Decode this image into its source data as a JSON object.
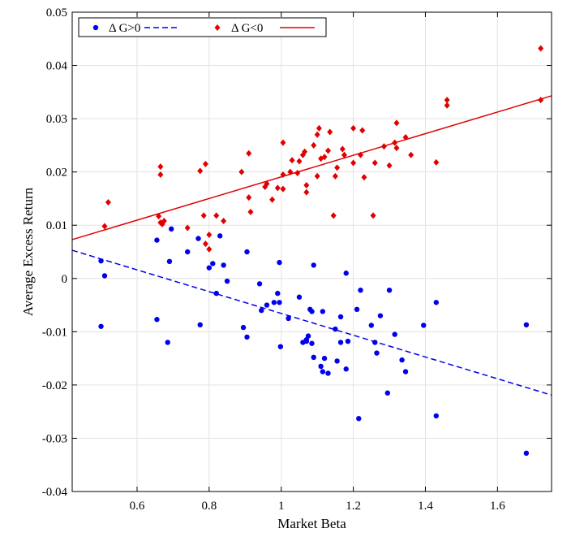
{
  "chart_data": {
    "type": "scatter",
    "title": "",
    "xlabel": "Market Beta",
    "ylabel": "Average Excess Return",
    "xlim": [
      0.42,
      1.75
    ],
    "ylim": [
      -0.04,
      0.05
    ],
    "xticks": [
      0.6,
      0.8,
      1,
      1.2,
      1.4,
      1.6
    ],
    "xtick_labels": [
      "0.6",
      "0.8",
      "1",
      "1.2",
      "1.4",
      "1.6"
    ],
    "yticks": [
      -0.04,
      -0.03,
      -0.02,
      -0.01,
      0,
      0.01,
      0.02,
      0.03,
      0.04,
      0.05
    ],
    "ytick_labels": [
      "-0.04",
      "-0.03",
      "-0.02",
      "-0.01",
      "0",
      "0.01",
      "0.02",
      "0.03",
      "0.04",
      "0.05"
    ],
    "grid": true,
    "legend_position": "top-left",
    "series": [
      {
        "name": "Δ G>0",
        "marker": "circle",
        "color": "#0000ee",
        "fit_line": {
          "style": "dashed",
          "x": [
            0.42,
            1.75
          ],
          "y": [
            0.0053,
            -0.0219
          ]
        },
        "points": [
          [
            0.5,
            0.0033
          ],
          [
            0.51,
            0.0005
          ],
          [
            0.5,
            -0.009
          ],
          [
            0.655,
            0.0072
          ],
          [
            0.655,
            -0.0077
          ],
          [
            0.685,
            -0.012
          ],
          [
            0.69,
            0.0032
          ],
          [
            0.695,
            0.0093
          ],
          [
            0.74,
            0.005
          ],
          [
            0.77,
            0.0075
          ],
          [
            0.775,
            -0.0087
          ],
          [
            0.8,
            0.002
          ],
          [
            0.81,
            0.0028
          ],
          [
            0.82,
            -0.0028
          ],
          [
            0.83,
            0.008
          ],
          [
            0.84,
            0.0025
          ],
          [
            0.85,
            -0.0005
          ],
          [
            0.895,
            -0.0092
          ],
          [
            0.905,
            0.005
          ],
          [
            0.905,
            -0.011
          ],
          [
            0.94,
            -0.001
          ],
          [
            0.945,
            -0.006
          ],
          [
            0.96,
            -0.005
          ],
          [
            0.98,
            -0.0045
          ],
          [
            0.99,
            -0.0028
          ],
          [
            0.995,
            0.003
          ],
          [
            0.995,
            -0.0045
          ],
          [
            0.998,
            -0.0128
          ],
          [
            1.02,
            -0.0075
          ],
          [
            1.05,
            -0.0035
          ],
          [
            1.06,
            -0.012
          ],
          [
            1.07,
            -0.0115
          ],
          [
            1.07,
            -0.0118
          ],
          [
            1.075,
            -0.0108
          ],
          [
            1.08,
            -0.0058
          ],
          [
            1.085,
            -0.0062
          ],
          [
            1.085,
            -0.0122
          ],
          [
            1.09,
            -0.0148
          ],
          [
            1.09,
            0.0025
          ],
          [
            1.11,
            -0.0165
          ],
          [
            1.115,
            -0.0062
          ],
          [
            1.115,
            -0.0175
          ],
          [
            1.12,
            -0.015
          ],
          [
            1.13,
            -0.0178
          ],
          [
            1.15,
            -0.0095
          ],
          [
            1.155,
            -0.0155
          ],
          [
            1.165,
            -0.0072
          ],
          [
            1.165,
            -0.012
          ],
          [
            1.18,
            0.001
          ],
          [
            1.18,
            -0.017
          ],
          [
            1.185,
            -0.0118
          ],
          [
            1.21,
            -0.0058
          ],
          [
            1.215,
            -0.0263
          ],
          [
            1.22,
            -0.0022
          ],
          [
            1.25,
            -0.0088
          ],
          [
            1.26,
            -0.012
          ],
          [
            1.265,
            -0.014
          ],
          [
            1.275,
            -0.007
          ],
          [
            1.295,
            -0.0215
          ],
          [
            1.3,
            -0.0022
          ],
          [
            1.315,
            -0.0105
          ],
          [
            1.335,
            -0.0153
          ],
          [
            1.345,
            -0.0175
          ],
          [
            1.395,
            -0.0088
          ],
          [
            1.43,
            -0.0045
          ],
          [
            1.43,
            -0.0258
          ],
          [
            1.68,
            -0.0087
          ],
          [
            1.68,
            -0.0328
          ]
        ]
      },
      {
        "name": "Δ G<0",
        "marker": "diamond",
        "color": "#e00000",
        "fit_line": {
          "style": "solid",
          "x": [
            0.42,
            1.75
          ],
          "y": [
            0.0073,
            0.0343
          ]
        },
        "points": [
          [
            0.51,
            0.0098
          ],
          [
            0.52,
            0.0143
          ],
          [
            0.66,
            0.0117
          ],
          [
            0.665,
            0.0105
          ],
          [
            0.665,
            0.0195
          ],
          [
            0.665,
            0.021
          ],
          [
            0.67,
            0.0102
          ],
          [
            0.675,
            0.0108
          ],
          [
            0.74,
            0.0095
          ],
          [
            0.775,
            0.0202
          ],
          [
            0.785,
            0.0118
          ],
          [
            0.79,
            0.0065
          ],
          [
            0.79,
            0.0215
          ],
          [
            0.8,
            0.0055
          ],
          [
            0.8,
            0.0082
          ],
          [
            0.82,
            0.0118
          ],
          [
            0.84,
            0.0108
          ],
          [
            0.89,
            0.02
          ],
          [
            0.91,
            0.0152
          ],
          [
            0.91,
            0.0235
          ],
          [
            0.915,
            0.0125
          ],
          [
            0.955,
            0.0172
          ],
          [
            0.96,
            0.0178
          ],
          [
            0.975,
            0.0148
          ],
          [
            0.99,
            0.017
          ],
          [
            1.005,
            0.0195
          ],
          [
            1.005,
            0.0255
          ],
          [
            1.005,
            0.0168
          ],
          [
            1.025,
            0.02
          ],
          [
            1.03,
            0.0222
          ],
          [
            1.045,
            0.0198
          ],
          [
            1.05,
            0.022
          ],
          [
            1.06,
            0.0232
          ],
          [
            1.065,
            0.0238
          ],
          [
            1.07,
            0.0162
          ],
          [
            1.07,
            0.0175
          ],
          [
            1.09,
            0.025
          ],
          [
            1.1,
            0.0192
          ],
          [
            1.1,
            0.027
          ],
          [
            1.105,
            0.0282
          ],
          [
            1.11,
            0.0225
          ],
          [
            1.12,
            0.0228
          ],
          [
            1.13,
            0.024
          ],
          [
            1.135,
            0.0275
          ],
          [
            1.145,
            0.0118
          ],
          [
            1.15,
            0.0192
          ],
          [
            1.155,
            0.0208
          ],
          [
            1.17,
            0.0243
          ],
          [
            1.175,
            0.0232
          ],
          [
            1.2,
            0.0282
          ],
          [
            1.2,
            0.0217
          ],
          [
            1.22,
            0.0232
          ],
          [
            1.225,
            0.0278
          ],
          [
            1.23,
            0.019
          ],
          [
            1.255,
            0.0118
          ],
          [
            1.26,
            0.0217
          ],
          [
            1.285,
            0.0248
          ],
          [
            1.3,
            0.0212
          ],
          [
            1.315,
            0.0255
          ],
          [
            1.32,
            0.0245
          ],
          [
            1.32,
            0.0292
          ],
          [
            1.345,
            0.0265
          ],
          [
            1.36,
            0.0232
          ],
          [
            1.43,
            0.0218
          ],
          [
            1.46,
            0.0325
          ],
          [
            1.46,
            0.0335
          ],
          [
            1.72,
            0.0335
          ],
          [
            1.72,
            0.0432
          ]
        ]
      }
    ]
  },
  "legend": {
    "entries": [
      "Δ G>0",
      "Δ G<0"
    ]
  }
}
